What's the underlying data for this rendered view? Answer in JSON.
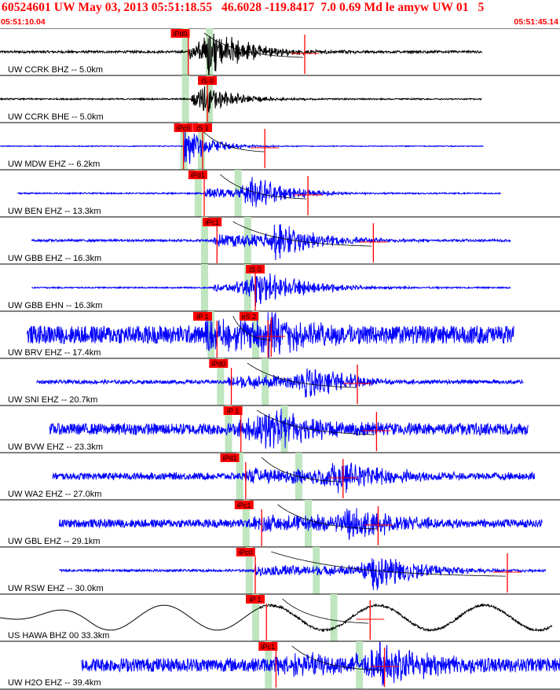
{
  "header": {
    "title": "60524601 UW May 03, 2013 05:51:18.55   46.6028 -119.8417  7.0 0.69 Md le amyw UW 01   5",
    "start_time": "05:51:10.04",
    "end_time": "05:51:45.14"
  },
  "colors": {
    "trace_blue": "#0000ff",
    "trace_black": "#000000",
    "pick": "#ff0000",
    "travel_window": "#bfe6bf",
    "background": "#ffffff"
  },
  "chart_data": {
    "type": "line",
    "title": "60524601 UW May 03, 2013 05:51:18.55   46.6028 -119.8417  7.0 0.69 Md le amyw UW 01   5",
    "x_range": [
      "05:51:10.04",
      "05:51:45.14"
    ],
    "x_span_s": 35.1,
    "grid": false,
    "series": [
      {
        "name": "UW CCRK BHZ -- 5.0km",
        "color": "#000000",
        "t_start": 0.0,
        "t_end": 30.2,
        "noise": 0.05,
        "burst_t": 13.0,
        "burst_amp": 0.95,
        "decay": 2.5,
        "pre_t": 11.8,
        "pre_amp": 0.25,
        "period": 0.35,
        "picks": [
          {
            "label": "iPd0",
            "t": 11.3,
            "line_t": 11.8
          }
        ],
        "coda_t": 19.1,
        "windows": [
          11.6,
          13.1
        ]
      },
      {
        "name": "UW CCRK BHE -- 5.0km",
        "color": "#000000",
        "t_start": 0.0,
        "t_end": 30.2,
        "noise": 0.03,
        "burst_t": 12.6,
        "burst_amp": 0.6,
        "decay": 2.0,
        "pre_t": 12.0,
        "pre_amp": 0.2,
        "period": 0.35,
        "picks": [
          {
            "label": "iS 0",
            "t": 13.0,
            "line_t": 13.0
          }
        ],
        "coda_t": null,
        "windows": [
          11.6,
          13.1
        ]
      },
      {
        "name": "UW MDW EHZ -- 6.2km",
        "color": "#0000ff",
        "t_start": 0.0,
        "t_end": 30.3,
        "noise": 0.02,
        "burst_t": 11.5,
        "burst_amp": 0.9,
        "decay": 1.4,
        "pre_t": 11.5,
        "pre_amp": 0.0,
        "period": 0.25,
        "picks": [
          {
            "label": "iPc0",
            "t": 11.5,
            "line_t": 11.5
          },
          {
            "label": "iS 1",
            "t": 12.7,
            "line_t": 12.7
          }
        ],
        "coda_t": 16.6,
        "windows": [
          11.5,
          12.6
        ]
      },
      {
        "name": "UW BEN EHZ -- 13.3km",
        "color": "#0000ff",
        "t_start": 1.1,
        "t_end": 31.4,
        "noise": 0.03,
        "burst_t": 15.7,
        "burst_amp": 0.7,
        "decay": 2.2,
        "pre_t": 12.8,
        "pre_amp": 0.2,
        "period": 0.3,
        "picks": [
          {
            "label": "iPd1",
            "t": 12.4,
            "line_t": 12.8
          }
        ],
        "coda_t": 19.3,
        "windows": [
          12.4,
          14.9
        ]
      },
      {
        "name": "UW GBB EHZ -- 16.3km",
        "color": "#0000ff",
        "t_start": 2.0,
        "t_end": 32.0,
        "noise": 0.05,
        "burst_t": 17.2,
        "burst_amp": 0.8,
        "decay": 2.6,
        "pre_t": 13.4,
        "pre_amp": 0.25,
        "period": 0.3,
        "picks": [
          {
            "label": "iPc1",
            "t": 13.3,
            "line_t": 13.6
          }
        ],
        "coda_t": 23.4,
        "windows": [
          12.8,
          15.5
        ]
      },
      {
        "name": "UW GBB EHN -- 16.3km",
        "color": "#0000ff",
        "t_start": 2.0,
        "t_end": 32.0,
        "noise": 0.03,
        "burst_t": 15.8,
        "burst_amp": 0.75,
        "decay": 3.0,
        "pre_t": 13.4,
        "pre_amp": 0.15,
        "period": 0.3,
        "picks": [
          {
            "label": "iS 0",
            "t": 16.0,
            "line_t": 16.0
          }
        ],
        "coda_t": null,
        "windows": [
          12.8,
          15.5
        ]
      },
      {
        "name": "UW BRV EHZ -- 17.4km",
        "color": "#0000ff",
        "t_start": 1.7,
        "t_end": 32.2,
        "noise": 0.4,
        "burst_t": 16.8,
        "burst_amp": 0.9,
        "decay": 2.0,
        "pre_t": 12.8,
        "pre_amp": 0.45,
        "period": 0.22,
        "picks": [
          {
            "label": "iP 1",
            "t": 12.7,
            "line_t": 13.6
          },
          {
            "label": "eS 2",
            "t": 15.6,
            "line_t": 16.8
          }
        ],
        "coda_t": 17.0,
        "windows": [
          13.2,
          16.0
        ]
      },
      {
        "name": "UW SNI EHZ -- 20.7km",
        "color": "#0000ff",
        "t_start": 2.3,
        "t_end": 32.8,
        "noise": 0.08,
        "burst_t": 19.0,
        "burst_amp": 0.75,
        "decay": 2.6,
        "pre_t": 14.3,
        "pre_amp": 0.25,
        "period": 0.28,
        "picks": [
          {
            "label": "iPd0",
            "t": 13.7,
            "line_t": 14.5
          }
        ],
        "coda_t": 22.4,
        "windows": [
          13.8,
          16.6
        ]
      },
      {
        "name": "UW BVW EHZ -- 23.3km",
        "color": "#0000ff",
        "t_start": 3.1,
        "t_end": 33.1,
        "noise": 0.25,
        "burst_t": 16.6,
        "burst_amp": 0.85,
        "decay": 3.0,
        "pre_t": 14.9,
        "pre_amp": 0.3,
        "period": 0.25,
        "picks": [
          {
            "label": "iP 1",
            "t": 14.6,
            "line_t": 15.1
          }
        ],
        "coda_t": 23.6,
        "windows": [
          14.3,
          17.8
        ]
      },
      {
        "name": "UW WA2 EHZ -- 27.0km",
        "color": "#0000ff",
        "t_start": 3.3,
        "t_end": 33.5,
        "noise": 0.15,
        "burst_t": 21.0,
        "burst_amp": 0.75,
        "decay": 2.8,
        "pre_t": 15.4,
        "pre_amp": 0.25,
        "period": 0.27,
        "picks": [
          {
            "label": "iPd1",
            "t": 14.4,
            "line_t": 15.4
          }
        ],
        "coda_t": 21.5,
        "windows": [
          15.0,
          18.7
        ]
      },
      {
        "name": "UW GBL EHZ -- 29.1km",
        "color": "#0000ff",
        "t_start": 3.7,
        "t_end": 34.0,
        "noise": 0.18,
        "burst_t": 21.8,
        "burst_amp": 0.8,
        "decay": 2.5,
        "pre_t": 15.8,
        "pre_amp": 0.25,
        "period": 0.25,
        "picks": [
          {
            "label": "iPc1",
            "t": 15.3,
            "line_t": 16.4
          }
        ],
        "coda_t": 23.7,
        "windows": [
          15.4,
          19.3
        ]
      },
      {
        "name": "UW RSW EHZ -- 30.0km",
        "color": "#0000ff",
        "t_start": 3.7,
        "t_end": 34.2,
        "noise": 0.05,
        "burst_t": 23.3,
        "burst_amp": 0.8,
        "decay": 2.8,
        "pre_t": 16.0,
        "pre_amp": 0.2,
        "period": 0.28,
        "picks": [
          {
            "label": "iPc0",
            "t": 15.4,
            "line_t": 16.0
          }
        ],
        "coda_t": 31.8,
        "windows": [
          15.6,
          19.8
        ]
      },
      {
        "name": "US HAWA BHZ 00 33.3km",
        "color": "#000000",
        "t_start": 0.0,
        "t_end": 34.6,
        "noise": 0.0,
        "burst_t": 21.8,
        "burst_amp": 0.35,
        "decay": 1.8,
        "pre_t": 16.3,
        "pre_amp": 0.0,
        "period": 0.25,
        "picks": [
          {
            "label": "iP 1",
            "t": 16.0,
            "line_t": 16.7
          }
        ],
        "coda_t": 23.2,
        "windows": [
          16.0,
          20.9
        ]
      },
      {
        "name": "UW H2O EHZ -- 39.4km",
        "color": "#0000ff",
        "t_start": 5.1,
        "t_end": 35.1,
        "noise": 0.3,
        "burst_t": 23.7,
        "burst_amp": 0.9,
        "decay": 2.6,
        "pre_t": 17.2,
        "pre_amp": 0.3,
        "period": 0.23,
        "picks": [
          {
            "label": "iPc1",
            "t": 16.8,
            "line_t": 17.3
          }
        ],
        "coda_t": 24.1,
        "windows": [
          16.8,
          22.5
        ]
      }
    ]
  }
}
